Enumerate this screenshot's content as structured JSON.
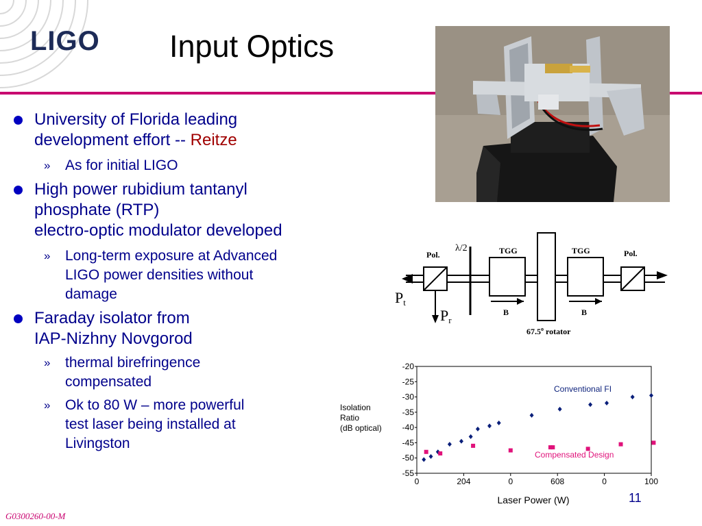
{
  "header": {
    "logo": "LIGO",
    "title": "Input Optics"
  },
  "bullets": [
    {
      "lines": [
        "University of Florida leading",
        "development effort -- "
      ],
      "highlight": "Reitze",
      "subs": [
        {
          "lines": [
            "As for initial LIGO"
          ]
        }
      ]
    },
    {
      "lines": [
        "High power rubidium tantanyl",
        "phosphate (RTP)",
        "electro-optic modulator developed"
      ],
      "subs": [
        {
          "lines": [
            "Long-term exposure at Advanced",
            "LIGO  power densities without",
            "damage"
          ]
        }
      ]
    },
    {
      "lines": [
        "Faraday isolator from",
        "IAP-Nizhny Novgorod"
      ],
      "subs": [
        {
          "lines": [
            "thermal birefringence",
            "compensated"
          ]
        },
        {
          "lines": [
            "Ok to 80 W – more powerful",
            "test laser being installed at",
            "Livingston"
          ]
        }
      ]
    }
  ],
  "sub_marker": "»",
  "diagram": {
    "pol_left": "Pol.",
    "lambda": "λ/2",
    "tgg_left": "TGG",
    "tgg_right": "TGG",
    "pol_right": "Pol.",
    "b_left": "B",
    "b_right": "B",
    "rotator": "67.5",
    "rotator_suffix": " rotator",
    "pt_main": "P",
    "pt_sub": "t",
    "pr_main": "P",
    "pr_sub": "r"
  },
  "chart_data": {
    "type": "scatter",
    "ylabel": [
      "Isolation",
      "Ratio",
      "(dB optical)"
    ],
    "xlabel": "Laser Power (W)",
    "xlim": [
      0,
      100
    ],
    "ylim": [
      -55,
      -20
    ],
    "x_tick_labels": [
      "0",
      "204",
      "0",
      "608",
      "0",
      "100"
    ],
    "y_ticks": [
      -20,
      -25,
      -30,
      -35,
      -40,
      -45,
      -50,
      -55
    ],
    "series": [
      {
        "name": "Conventional FI",
        "color": "#0a1f7a",
        "marker": "diamond",
        "x": [
          3,
          6,
          9,
          14,
          19,
          23,
          26,
          31,
          35,
          49,
          61,
          74,
          81,
          92,
          100
        ],
        "y": [
          -50.5,
          -49.5,
          -48,
          -45.5,
          -44.5,
          -43,
          -40.5,
          -39.5,
          -38.5,
          -36,
          -34,
          -32.5,
          -32,
          -30,
          -29.5
        ]
      },
      {
        "name": "Compensated Design",
        "color": "#e0127a",
        "marker": "square",
        "x": [
          4,
          10,
          24,
          40,
          57,
          58,
          73,
          87,
          101
        ],
        "y": [
          -48,
          -48.5,
          -46,
          -47.5,
          -46.5,
          -46.5,
          -47,
          -45.5,
          -45
        ]
      }
    ]
  },
  "page_number": "11",
  "footer_code": "G0300260-00-M"
}
